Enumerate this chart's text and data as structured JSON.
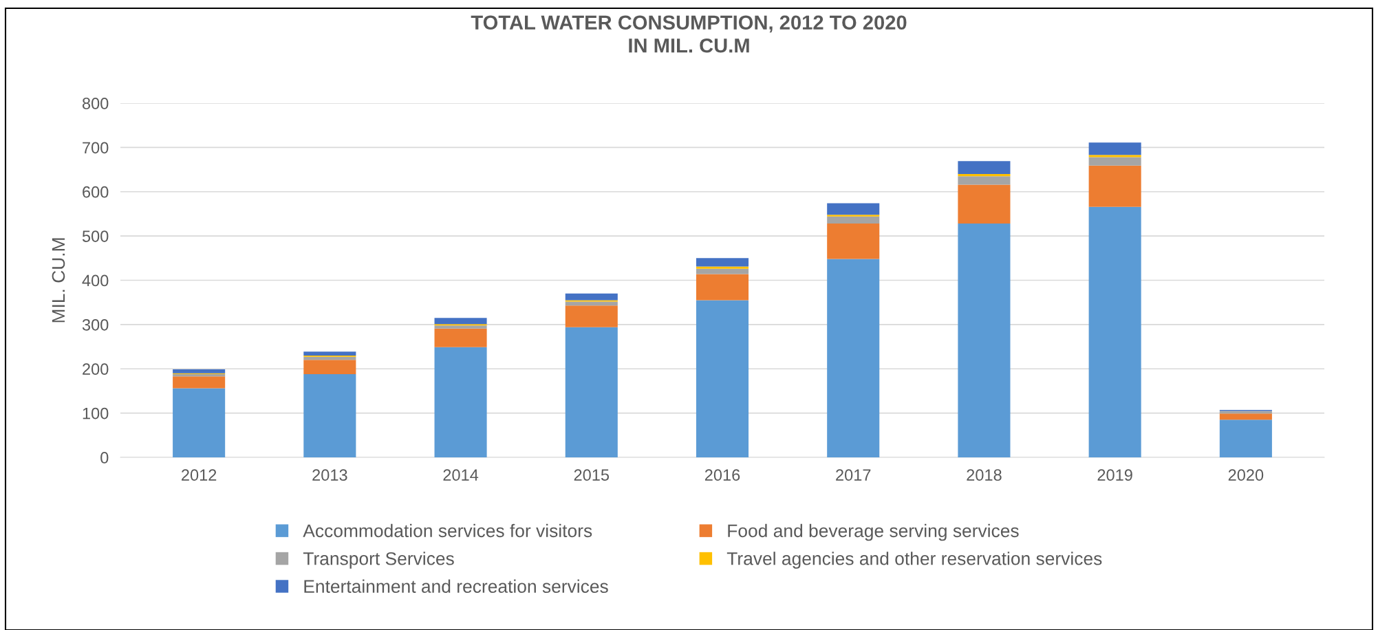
{
  "chart_data": {
    "type": "bar",
    "title": "TOTAL WATER CONSUMPTION, 2012 TO 2020\nIN MIL. CU.M",
    "ylabel": "MIL. CU.M",
    "categories": [
      "2012",
      "2013",
      "2014",
      "2015",
      "2016",
      "2017",
      "2018",
      "2019",
      "2020"
    ],
    "stacked": true,
    "ylim": [
      0,
      800
    ],
    "yticks": [
      0,
      100,
      200,
      300,
      400,
      500,
      600,
      700,
      800
    ],
    "grid": "y",
    "legend": "bottom",
    "series": [
      {
        "name": "Accommodation services for visitors",
        "color": "#5b9bd5",
        "values": [
          156,
          188,
          249,
          294,
          355,
          448,
          528,
          566,
          85
        ]
      },
      {
        "name": "Food and beverage serving services",
        "color": "#ed7d31",
        "values": [
          27,
          32,
          42,
          49,
          59,
          80,
          88,
          93,
          14
        ]
      },
      {
        "name": "Transport Services",
        "color": "#a5a5a5",
        "values": [
          5,
          7,
          7,
          9,
          12,
          16,
          19,
          19,
          6
        ]
      },
      {
        "name": "Travel agencies and other reservation services",
        "color": "#ffc000",
        "values": [
          2,
          3,
          3,
          3,
          5,
          4,
          5,
          5,
          null
        ]
      },
      {
        "name": "Entertainment and recreation services",
        "color": "#4472c4",
        "values": [
          9,
          9,
          14,
          15,
          19,
          26,
          29,
          28,
          2
        ]
      }
    ]
  }
}
